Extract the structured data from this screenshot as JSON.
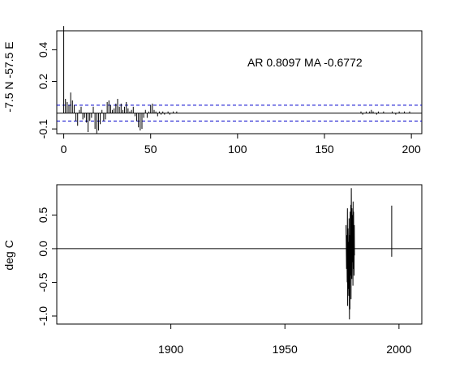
{
  "chart_data": [
    {
      "type": "bar",
      "subtype": "acf-spike",
      "ylabel": "-7.5 N -57.5 E",
      "annotation": "AR 0.8097  MA -0.6772",
      "xlim": [
        -4,
        206
      ],
      "ylim": [
        -0.13,
        0.52
      ],
      "x_ticks": [
        0,
        50,
        100,
        150,
        200
      ],
      "y_ticks": [
        -0.1,
        0.2,
        0.4
      ],
      "y_tick_labels": [
        "-0.1",
        "0.2",
        "0.4"
      ],
      "confidence_band": [
        0.05,
        -0.05
      ],
      "zero_line": 0.0,
      "colors": {
        "spikes": "#000000",
        "band": "#0000cc",
        "zero": "#000000"
      },
      "lags": [
        0,
        1,
        2,
        3,
        4,
        5,
        6,
        7,
        8,
        9,
        10,
        11,
        12,
        13,
        14,
        15,
        16,
        17,
        18,
        19,
        20,
        21,
        22,
        23,
        24,
        25,
        26,
        27,
        28,
        29,
        30,
        31,
        32,
        33,
        34,
        35,
        36,
        37,
        38,
        39,
        40,
        41,
        42,
        43,
        44,
        45,
        46,
        47,
        48,
        49,
        50,
        51,
        52,
        53,
        54,
        55,
        56,
        57,
        58,
        59,
        60,
        61,
        62,
        63,
        64,
        65,
        170,
        171,
        172,
        173,
        174,
        175,
        176,
        177,
        178,
        179,
        180,
        181,
        182,
        183,
        184,
        185,
        186,
        187,
        188,
        189,
        190,
        191,
        192,
        193,
        194,
        195,
        196,
        197,
        198,
        199,
        200
      ],
      "acf": [
        0.55,
        0.09,
        0.07,
        0.05,
        0.13,
        0.08,
        0.05,
        -0.05,
        -0.08,
        0.02,
        0.04,
        -0.04,
        -0.03,
        -0.06,
        -0.12,
        -0.05,
        -0.03,
        0.04,
        -0.1,
        -0.13,
        -0.11,
        -0.07,
        0.02,
        -0.05,
        -0.04,
        0.07,
        0.08,
        0.05,
        0.02,
        0.03,
        0.06,
        0.09,
        0.04,
        0.06,
        0.02,
        0.04,
        0.07,
        0.03,
        0.01,
        0.02,
        0.04,
        -0.02,
        -0.05,
        -0.09,
        -0.11,
        -0.1,
        -0.03,
        0.02,
        -0.03,
        0.01,
        0.05,
        0.06,
        0.02,
        0.01,
        -0.02,
        0.01,
        -0.01,
        0.01,
        -0.01,
        0.0,
        0.01,
        -0.01,
        0.0,
        0.01,
        0.0,
        0.01,
        0.0,
        0.01,
        -0.01,
        0.0,
        0.01,
        0.0,
        0.01,
        0.02,
        0.01,
        0.0,
        -0.01,
        0.01,
        0.0,
        0.0,
        0.01,
        0.0,
        0.0,
        0.0,
        0.0,
        0.01,
        0.0,
        -0.01,
        0.0,
        0.01,
        0.0,
        0.0,
        0.01,
        0.0,
        0.0,
        0.01,
        0.0
      ]
    },
    {
      "type": "line",
      "ylabel": "deg C",
      "xlim": [
        1850,
        2010
      ],
      "ylim": [
        -1.12,
        0.95
      ],
      "x_ticks": [
        1900,
        1950,
        2000
      ],
      "y_ticks": [
        -1.0,
        -0.5,
        0.0,
        0.5
      ],
      "y_tick_labels": [
        "-1.0",
        "-0.5",
        "0.0",
        "0.5"
      ],
      "zero_line": 0.0,
      "colors": {
        "line": "#000000",
        "zero": "#000000"
      },
      "series": [
        {
          "x": [
            1976.8,
            1977.0,
            1977.1,
            1977.3,
            1977.4,
            1977.5,
            1977.6,
            1977.8,
            1977.9,
            1978.0,
            1978.1,
            1978.3,
            1978.4,
            1978.5,
            1978.6,
            1978.8,
            1978.9,
            1979.0,
            1979.1,
            1979.3,
            1979.4,
            1979.5,
            1979.6,
            1979.8,
            1979.9,
            1980.0,
            1980.1,
            1980.3,
            1980.4,
            1980.5
          ],
          "y": [
            0.35,
            -0.3,
            0.2,
            -0.5,
            0.6,
            -0.85,
            0.3,
            -0.6,
            0.1,
            -0.7,
            0.45,
            -1.05,
            0.2,
            -0.9,
            0.55,
            -0.4,
            0.65,
            -0.75,
            0.9,
            -0.45,
            0.6,
            -0.2,
            0.5,
            -0.55,
            0.7,
            -0.3,
            0.55,
            -0.4,
            0.35,
            -0.1
          ]
        },
        {
          "x": [
            1996.8,
            1996.8
          ],
          "y": [
            -0.12,
            0.64
          ]
        }
      ]
    }
  ]
}
